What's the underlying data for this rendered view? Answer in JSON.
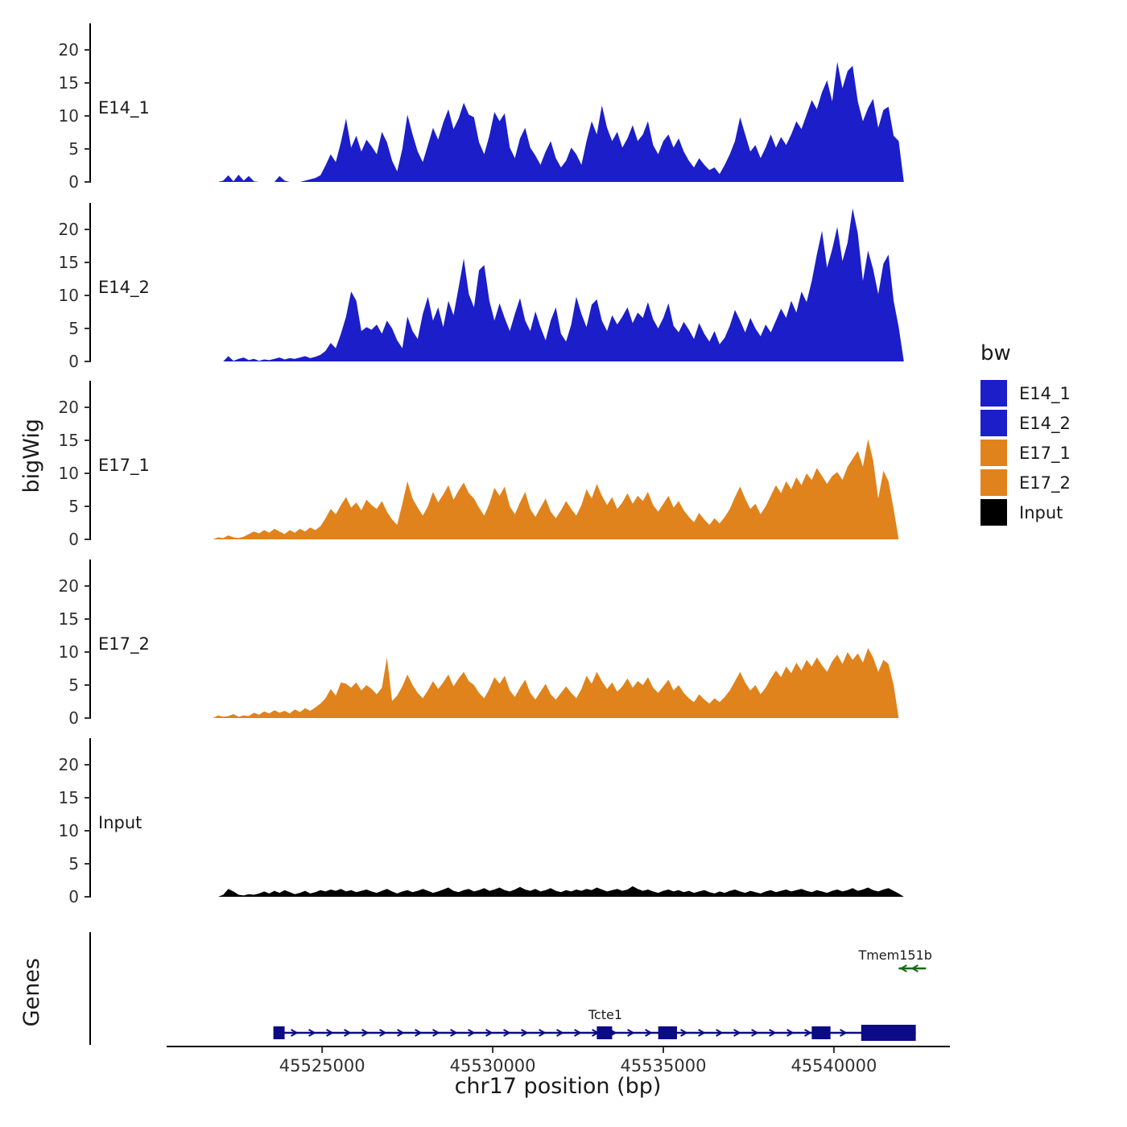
{
  "labels": {
    "y_axis": "bigWig",
    "genes_axis": "Genes",
    "x_axis": "chr17 position (bp)"
  },
  "legend": {
    "title": "bw",
    "items": [
      {
        "label": "E14_1",
        "color": "#1b1ec9"
      },
      {
        "label": "E14_2",
        "color": "#1b1ec9"
      },
      {
        "label": "E17_1",
        "color": "#e0831c"
      },
      {
        "label": "E17_2",
        "color": "#e0831c"
      },
      {
        "label": "Input",
        "color": "#000000"
      }
    ]
  },
  "chart_data": {
    "type": "area",
    "title": "",
    "xlabel": "chr17 position (bp)",
    "ylabel": "bigWig",
    "x_axis": {
      "domain": [
        45518200,
        45543400
      ],
      "ticks": [
        45525000,
        45530000,
        45535000,
        45540000
      ],
      "tick_labels": [
        "45525000",
        "45530000",
        "45535000",
        "45540000"
      ]
    },
    "y_axis": {
      "ticks": [
        0,
        5,
        10,
        15,
        20
      ],
      "ylim": [
        0,
        24
      ]
    },
    "x_start": 45521800,
    "x_step": 150,
    "tracks": [
      {
        "name": "E14_1",
        "color": "#1b1ec9",
        "values": [
          0,
          0,
          0.2,
          1.0,
          0.1,
          1.1,
          0.2,
          0.9,
          0.1,
          0,
          0,
          0,
          0,
          0.9,
          0.2,
          0,
          0,
          0,
          0.2,
          0.4,
          0.6,
          1.0,
          2.5,
          4.2,
          3.0,
          6.0,
          9.6,
          5.2,
          7.0,
          4.6,
          6.4,
          5.4,
          4.2,
          7.6,
          6.0,
          3.2,
          1.6,
          5.0,
          10.2,
          7.2,
          4.6,
          3.0,
          5.6,
          8.2,
          6.4,
          9.0,
          11.0,
          8.0,
          9.6,
          12.0,
          10.2,
          9.8,
          6.0,
          4.2,
          7.0,
          10.6,
          9.2,
          10.4,
          5.2,
          3.6,
          6.6,
          8.2,
          5.2,
          4.0,
          2.6,
          4.6,
          6.2,
          3.6,
          2.2,
          3.2,
          5.2,
          4.2,
          2.6,
          6.2,
          9.2,
          7.2,
          11.6,
          8.2,
          6.2,
          7.6,
          5.2,
          6.6,
          8.6,
          6.2,
          7.2,
          9.2,
          5.6,
          4.2,
          6.2,
          7.2,
          5.2,
          6.6,
          4.6,
          3.2,
          2.2,
          3.6,
          2.6,
          1.8,
          2.2,
          1.2,
          2.6,
          4.2,
          6.2,
          9.8,
          7.2,
          4.6,
          5.6,
          3.6,
          5.2,
          7.2,
          5.2,
          6.8,
          5.6,
          7.2,
          9.2,
          8.0,
          10.2,
          12.4,
          11.0,
          13.6,
          15.4,
          12.2,
          18.2,
          14.2,
          16.8,
          17.6,
          12.2,
          9.2,
          11.2,
          12.6,
          8.2,
          10.9,
          11.4,
          7.0,
          6.2,
          0
        ]
      },
      {
        "name": "E14_2",
        "color": "#1b1ec9",
        "values": [
          0,
          0,
          0,
          0.8,
          0.1,
          0.4,
          0.6,
          0.2,
          0.4,
          0.1,
          0.3,
          0.2,
          0.4,
          0.6,
          0.3,
          0.5,
          0.4,
          0.6,
          0.8,
          0.5,
          0.7,
          1.0,
          1.6,
          2.8,
          2.0,
          4.2,
          6.8,
          10.6,
          9.2,
          4.6,
          5.2,
          4.8,
          5.6,
          4.2,
          6.2,
          5.0,
          3.2,
          2.0,
          6.8,
          4.6,
          3.4,
          7.2,
          9.8,
          6.2,
          8.2,
          5.2,
          9.2,
          7.0,
          11.2,
          15.6,
          10.2,
          8.2,
          13.8,
          14.6,
          9.2,
          6.2,
          8.8,
          6.6,
          4.6,
          7.2,
          9.6,
          6.2,
          4.6,
          7.6,
          5.2,
          3.2,
          6.2,
          8.2,
          4.2,
          3.0,
          5.6,
          9.8,
          7.2,
          5.2,
          8.6,
          9.4,
          6.2,
          4.6,
          7.0,
          5.6,
          6.8,
          8.2,
          5.8,
          7.4,
          6.6,
          9.0,
          6.4,
          5.0,
          6.6,
          8.8,
          5.4,
          4.4,
          6.0,
          4.8,
          3.4,
          5.8,
          4.2,
          3.0,
          4.6,
          2.6,
          3.6,
          5.4,
          7.8,
          6.2,
          4.4,
          6.6,
          5.0,
          3.8,
          5.6,
          4.4,
          6.2,
          8.0,
          6.6,
          9.2,
          7.4,
          10.6,
          9.0,
          12.2,
          16.2,
          19.8,
          14.2,
          17.0,
          20.4,
          15.2,
          18.0,
          23.2,
          19.4,
          12.2,
          16.8,
          14.0,
          10.2,
          14.8,
          16.2,
          9.2,
          5.2,
          0
        ]
      },
      {
        "name": "E17_1",
        "color": "#e0831c",
        "values": [
          0,
          0.3,
          0.2,
          0.6,
          0.3,
          0.2,
          0.4,
          0.8,
          1.2,
          0.9,
          1.4,
          1.0,
          1.6,
          1.2,
          0.8,
          1.4,
          1.0,
          1.6,
          1.2,
          1.8,
          1.4,
          2.0,
          3.2,
          4.6,
          3.8,
          5.2,
          6.4,
          4.8,
          5.6,
          4.4,
          6.0,
          5.2,
          4.6,
          5.8,
          4.2,
          3.0,
          2.2,
          5.4,
          8.8,
          6.2,
          4.8,
          3.6,
          5.0,
          7.2,
          5.6,
          6.8,
          8.2,
          6.0,
          7.4,
          8.6,
          7.0,
          6.2,
          4.8,
          3.6,
          5.4,
          7.8,
          6.6,
          8.0,
          5.0,
          3.8,
          5.6,
          7.2,
          4.6,
          3.4,
          4.8,
          6.2,
          4.2,
          3.2,
          4.4,
          5.8,
          4.6,
          3.6,
          5.2,
          7.6,
          6.2,
          8.4,
          6.6,
          5.2,
          6.4,
          4.6,
          5.6,
          7.0,
          5.4,
          6.6,
          5.8,
          7.2,
          5.2,
          4.2,
          5.4,
          6.6,
          4.8,
          5.8,
          4.4,
          3.4,
          2.6,
          4.0,
          3.0,
          2.2,
          3.2,
          2.4,
          3.4,
          4.6,
          6.4,
          8.0,
          6.2,
          4.6,
          5.4,
          3.8,
          5.0,
          6.6,
          8.2,
          7.0,
          8.8,
          7.6,
          9.4,
          8.2,
          10.0,
          9.0,
          10.8,
          9.6,
          8.4,
          9.6,
          10.2,
          9.0,
          11.0,
          12.2,
          13.4,
          11.0,
          15.2,
          12.0,
          6.2,
          10.4,
          8.8,
          4.6,
          0,
          0
        ]
      },
      {
        "name": "E17_2",
        "color": "#e0831c",
        "values": [
          0,
          0.4,
          0.2,
          0.3,
          0.6,
          0.2,
          0.4,
          0.3,
          0.8,
          0.5,
          1.0,
          0.7,
          1.2,
          0.8,
          1.1,
          0.7,
          1.3,
          0.9,
          1.5,
          1.1,
          1.6,
          2.2,
          3.0,
          4.4,
          3.4,
          5.4,
          5.2,
          4.6,
          5.4,
          4.2,
          5.0,
          4.4,
          3.6,
          4.6,
          9.2,
          2.6,
          3.4,
          4.8,
          6.6,
          5.0,
          3.8,
          3.0,
          4.2,
          5.6,
          4.4,
          5.4,
          6.6,
          4.8,
          6.0,
          7.0,
          5.6,
          5.0,
          3.8,
          3.0,
          4.4,
          6.2,
          5.2,
          6.4,
          4.2,
          3.2,
          4.6,
          5.8,
          3.8,
          2.8,
          4.0,
          5.2,
          3.6,
          2.8,
          3.8,
          4.8,
          3.8,
          3.0,
          4.4,
          6.4,
          5.2,
          7.0,
          5.6,
          4.4,
          5.4,
          4.0,
          4.8,
          6.0,
          4.6,
          5.6,
          5.0,
          6.2,
          4.6,
          3.8,
          4.8,
          5.8,
          4.2,
          5.0,
          3.8,
          3.0,
          2.4,
          3.6,
          2.8,
          2.2,
          3.0,
          2.4,
          3.2,
          4.2,
          5.6,
          7.0,
          5.4,
          4.2,
          5.0,
          3.6,
          4.6,
          6.0,
          7.2,
          6.2,
          7.8,
          6.8,
          8.4,
          7.2,
          8.8,
          7.8,
          9.2,
          8.0,
          7.0,
          8.6,
          9.6,
          8.2,
          10.0,
          8.8,
          9.8,
          8.4,
          10.6,
          9.2,
          7.0,
          8.8,
          8.2,
          5.0,
          0,
          0
        ]
      },
      {
        "name": "Input",
        "color": "#000000",
        "values": [
          0,
          0,
          0.3,
          1.2,
          0.8,
          0.3,
          0.2,
          0.4,
          0.3,
          0.5,
          0.8,
          0.5,
          0.9,
          0.6,
          1.0,
          0.7,
          0.4,
          0.6,
          0.9,
          0.5,
          0.7,
          1.0,
          0.8,
          1.1,
          0.9,
          1.2,
          0.8,
          1.0,
          0.7,
          0.9,
          1.1,
          0.8,
          0.6,
          0.9,
          1.2,
          0.8,
          0.5,
          0.8,
          1.0,
          0.7,
          0.9,
          1.2,
          0.9,
          0.6,
          0.8,
          1.1,
          1.4,
          0.9,
          0.7,
          1.0,
          1.2,
          0.8,
          1.0,
          1.3,
          0.9,
          1.1,
          1.4,
          1.0,
          0.8,
          1.1,
          1.5,
          1.1,
          0.9,
          1.2,
          0.8,
          1.0,
          1.3,
          0.9,
          0.7,
          1.0,
          0.8,
          1.1,
          0.9,
          1.2,
          1.0,
          1.4,
          1.1,
          0.8,
          1.0,
          1.2,
          0.9,
          1.1,
          1.6,
          1.2,
          0.9,
          1.1,
          0.8,
          0.6,
          0.9,
          1.1,
          0.8,
          1.0,
          0.7,
          0.9,
          0.6,
          0.8,
          1.0,
          0.7,
          0.5,
          0.8,
          0.6,
          0.9,
          1.1,
          0.8,
          0.6,
          0.9,
          0.7,
          0.5,
          0.8,
          1.0,
          0.7,
          0.9,
          1.1,
          0.8,
          1.0,
          1.2,
          0.9,
          0.7,
          1.0,
          0.8,
          0.6,
          0.9,
          1.1,
          0.8,
          1.0,
          1.3,
          0.9,
          1.1,
          1.4,
          1.0,
          0.8,
          1.1,
          1.3,
          0.9,
          0.5,
          0
        ]
      }
    ],
    "genes": [
      {
        "name": "Tcte1",
        "strand": "+",
        "row": 1,
        "start": 45523600,
        "end": 45542400,
        "color": "#0b0b86",
        "label_pos": 45533300,
        "exons": [
          [
            45523600,
            45523900
          ],
          [
            45533050,
            45533500
          ],
          [
            45534850,
            45535400
          ],
          [
            45539350,
            45539900
          ],
          [
            45540800,
            45542400
          ]
        ]
      },
      {
        "name": "Tmem151b",
        "strand": "-",
        "row": 0,
        "start": 45541900,
        "end": 45542700,
        "color": "#156b15",
        "label_pos": 45541800,
        "exons": null
      }
    ]
  }
}
